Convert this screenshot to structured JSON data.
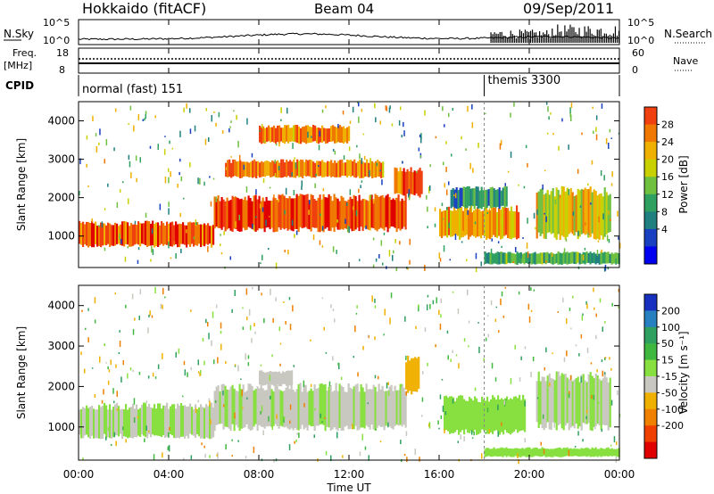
{
  "header": {
    "station": "Hokkaido (fitACF)",
    "beam": "Beam 04",
    "date": "09/Sep/2011"
  },
  "nsky": {
    "left_label": "N.Sky",
    "right_label": "N.Search",
    "tick_top": "10^5",
    "tick_bottom": "10^0"
  },
  "freq": {
    "label_top": "Freq.",
    "label_unit": "[MHz]",
    "tick_top": "18",
    "tick_bottom": "8",
    "right_tick_top": "60",
    "right_tick_bottom": "0",
    "right_label": "Nave"
  },
  "cpid": {
    "label": "CPID",
    "modes": [
      {
        "name": "normal (fast) 151",
        "start_hour": 0
      },
      {
        "name": "themis 3300",
        "start_hour": 18
      }
    ]
  },
  "power_panel": {
    "ylabel": "Slant Range [km]",
    "yticks": [
      "4000",
      "3000",
      "2000",
      "1000"
    ],
    "colorbar_label": "Power [dB]",
    "colorbar_ticks": [
      "28",
      "24",
      "20",
      "16",
      "12",
      "8",
      "4"
    ],
    "colorbar_colors": [
      "#e00000",
      "#f04010",
      "#f07800",
      "#f0b000",
      "#c8d000",
      "#70c040",
      "#30a060",
      "#208080",
      "#1840c0",
      "#0000f0"
    ]
  },
  "velocity_panel": {
    "ylabel": "Slant Range [km]",
    "yticks": [
      "4000",
      "3000",
      "2000",
      "1000"
    ],
    "colorbar_label": "Velocity [m s⁻¹]",
    "colorbar_ticks": [
      "200",
      "100",
      "50",
      "15",
      "-15",
      "-50",
      "-100",
      "-200"
    ],
    "colorbar_colors": [
      "#1830c0",
      "#2880c0",
      "#30a060",
      "#40b840",
      "#88e040",
      "#c8c8c0",
      "#f0b000",
      "#f08000",
      "#f04000",
      "#e00000"
    ]
  },
  "xaxis": {
    "label": "Time UT",
    "ticks": [
      "00:00",
      "04:00",
      "08:00",
      "12:00",
      "16:00",
      "20:00",
      "00:00"
    ]
  },
  "chart_data": {
    "type": "heatmap",
    "title": "Hokkaido (fitACF) Beam 04 09/Sep/2011",
    "xlabel": "Time UT",
    "ylabel": "Slant Range [km]",
    "xlim_hours": [
      0,
      24
    ],
    "ylim_km": [
      180,
      4500
    ],
    "power_range_db": [
      0,
      32
    ],
    "velocity_range": [
      -250,
      250
    ],
    "power_regions": [
      {
        "t0": 0.0,
        "t1": 6.0,
        "r0": 700,
        "r1": 1400,
        "power": 26
      },
      {
        "t0": 6.0,
        "t1": 14.5,
        "r0": 1100,
        "r1": 2100,
        "power": 27
      },
      {
        "t0": 6.5,
        "t1": 13.5,
        "r0": 2500,
        "r1": 3000,
        "power": 24
      },
      {
        "t0": 8.0,
        "t1": 12.0,
        "r0": 3400,
        "r1": 3900,
        "power": 24
      },
      {
        "t0": 14.0,
        "t1": 15.2,
        "r0": 2000,
        "r1": 2800,
        "power": 26
      },
      {
        "t0": 16.0,
        "t1": 19.5,
        "r0": 900,
        "r1": 1800,
        "power": 22
      },
      {
        "t0": 16.5,
        "t1": 19.0,
        "r0": 1700,
        "r1": 2300,
        "power": 10
      },
      {
        "t0": 20.3,
        "t1": 23.6,
        "r0": 900,
        "r1": 2300,
        "power": 18
      },
      {
        "t0": 18.0,
        "t1": 24.0,
        "r0": 250,
        "r1": 600,
        "power": 12
      }
    ],
    "velocity_regions": [
      {
        "t0": 0.0,
        "t1": 6.0,
        "r0": 700,
        "r1": 1600,
        "velocity": 0
      },
      {
        "t0": 6.0,
        "t1": 14.5,
        "r0": 900,
        "r1": 2100,
        "velocity": -5
      },
      {
        "t0": 8.0,
        "t1": 9.5,
        "r0": 2000,
        "r1": 2400,
        "velocity": -40
      },
      {
        "t0": 14.5,
        "t1": 15.1,
        "r0": 1800,
        "r1": 2800,
        "velocity": -60
      },
      {
        "t0": 16.2,
        "t1": 19.8,
        "r0": 800,
        "r1": 1800,
        "velocity": 40
      },
      {
        "t0": 20.3,
        "t1": 23.6,
        "r0": 900,
        "r1": 2400,
        "velocity": 0
      },
      {
        "t0": 18.0,
        "t1": 24.0,
        "r0": 250,
        "r1": 500,
        "velocity": 30
      }
    ]
  }
}
